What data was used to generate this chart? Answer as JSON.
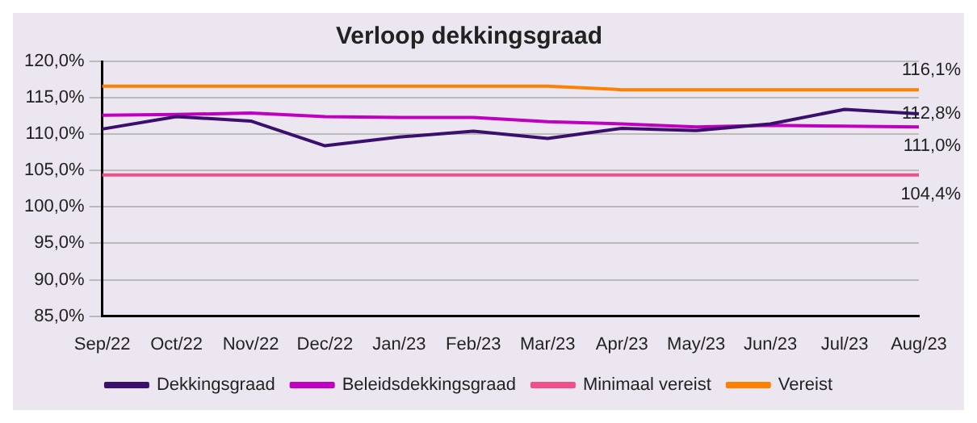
{
  "chart_data": {
    "type": "line",
    "title": "Verloop dekkingsgraad",
    "categories": [
      "Sep/22",
      "Oct/22",
      "Nov/22",
      "Dec/22",
      "Jan/23",
      "Feb/23",
      "Mar/23",
      "Apr/23",
      "May/23",
      "Jun/23",
      "Jul/23",
      "Aug/23"
    ],
    "series": [
      {
        "name": "Dekkingsgraad",
        "color": "#3b0f6e",
        "values": [
          110.7,
          112.4,
          111.8,
          108.4,
          109.6,
          110.4,
          109.4,
          110.8,
          110.5,
          111.4,
          113.4,
          112.8
        ],
        "value_labels": [
          null,
          null,
          null,
          null,
          null,
          null,
          null,
          null,
          null,
          null,
          null,
          "112,8%"
        ]
      },
      {
        "name": "Beleidsdekkingsgraad",
        "color": "#c000c0",
        "values": [
          112.6,
          112.7,
          112.9,
          112.4,
          112.3,
          112.3,
          111.7,
          111.4,
          111.0,
          111.2,
          111.1,
          111.0
        ],
        "value_labels": [
          null,
          null,
          null,
          null,
          null,
          null,
          null,
          null,
          null,
          null,
          null,
          "111,0%"
        ]
      },
      {
        "name": "Minimaal vereist",
        "color": "#f0508a",
        "values": [
          104.4,
          104.4,
          104.4,
          104.4,
          104.4,
          104.4,
          104.4,
          104.4,
          104.4,
          104.4,
          104.4,
          104.4
        ],
        "value_labels": [
          null,
          null,
          null,
          null,
          null,
          null,
          null,
          null,
          null,
          null,
          null,
          "104,4%"
        ]
      },
      {
        "name": "Vereist",
        "color": "#ff8000",
        "values": [
          116.6,
          116.6,
          116.6,
          116.6,
          116.6,
          116.6,
          116.6,
          116.1,
          116.1,
          116.1,
          116.1,
          116.1
        ],
        "value_labels": [
          null,
          null,
          null,
          null,
          null,
          null,
          null,
          null,
          null,
          null,
          null,
          "116,1%"
        ]
      }
    ],
    "ylim": [
      85,
      120
    ],
    "yticks": [
      {
        "value": 85,
        "label": "85,0%"
      },
      {
        "value": 90,
        "label": "90,0%"
      },
      {
        "value": 95,
        "label": "95,0%"
      },
      {
        "value": 100,
        "label": "100,0%"
      },
      {
        "value": 105,
        "label": "105,0%"
      },
      {
        "value": 110,
        "label": "110,0%"
      },
      {
        "value": 115,
        "label": "115,0%"
      },
      {
        "value": 120,
        "label": "120,0%"
      }
    ],
    "grid": "y",
    "legend": "bottom",
    "marker": "none",
    "line_style": "solid"
  }
}
